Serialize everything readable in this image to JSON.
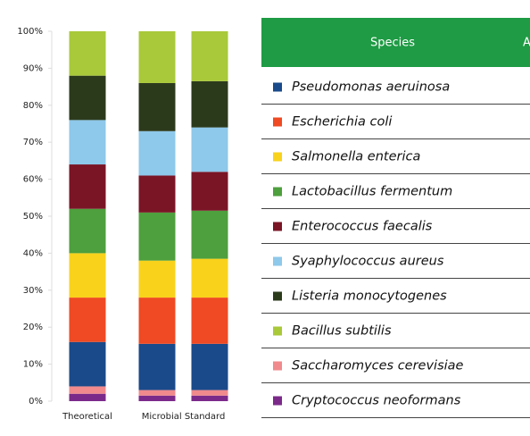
{
  "chart_data": {
    "type": "stacked_bar",
    "categories": [
      "Theoretical",
      "Microbial Standard",
      null
    ],
    "legend_header": [
      "Species",
      "A"
    ],
    "ylim": [
      0,
      100
    ],
    "yticks": [
      {
        "value": 0,
        "label": "0%"
      },
      {
        "value": 10,
        "label": "10%"
      },
      {
        "value": 20,
        "label": "20%"
      },
      {
        "value": 30,
        "label": "30%"
      },
      {
        "value": 40,
        "label": "40%"
      },
      {
        "value": 50,
        "label": "50%"
      },
      {
        "value": 60,
        "label": "60%"
      },
      {
        "value": 70,
        "label": "70%"
      },
      {
        "value": 80,
        "label": "80%"
      },
      {
        "value": 90,
        "label": "90%"
      },
      {
        "value": 100,
        "label": "100%"
      }
    ],
    "series": [
      {
        "name": "Pseudomonas aeruinosa",
        "color": "#1a4a8a",
        "values": [
          12,
          12.5,
          12.5
        ]
      },
      {
        "name": "Escherichia coli",
        "color": "#ef4a23",
        "values": [
          12,
          12.5,
          12.5
        ]
      },
      {
        "name": "Salmonella enterica",
        "color": "#f9d21c",
        "values": [
          12,
          10,
          10.5
        ]
      },
      {
        "name": "Lactobacillus fermentum",
        "color": "#4e9f3d",
        "values": [
          12,
          13,
          13
        ]
      },
      {
        "name": "Enterococcus faecalis",
        "color": "#7a1526",
        "values": [
          12,
          10,
          10.5
        ]
      },
      {
        "name": "Syaphylococcus aureus",
        "color": "#8ec8ea",
        "values": [
          12,
          12,
          12
        ]
      },
      {
        "name": "Listeria monocytogenes",
        "color": "#2c3a1c",
        "values": [
          12,
          13,
          12.5
        ]
      },
      {
        "name": "Bacillus subtilis",
        "color": "#a9c93a",
        "values": [
          12,
          14,
          13.5
        ]
      },
      {
        "name": "Saccharomyces cerevisiae",
        "color": "#f08a8c",
        "values": [
          2,
          1.5,
          1.5
        ]
      },
      {
        "name": "Cryptococcus neoformans",
        "color": "#7b2a8a",
        "values": [
          2,
          1.5,
          1.5
        ]
      }
    ]
  }
}
